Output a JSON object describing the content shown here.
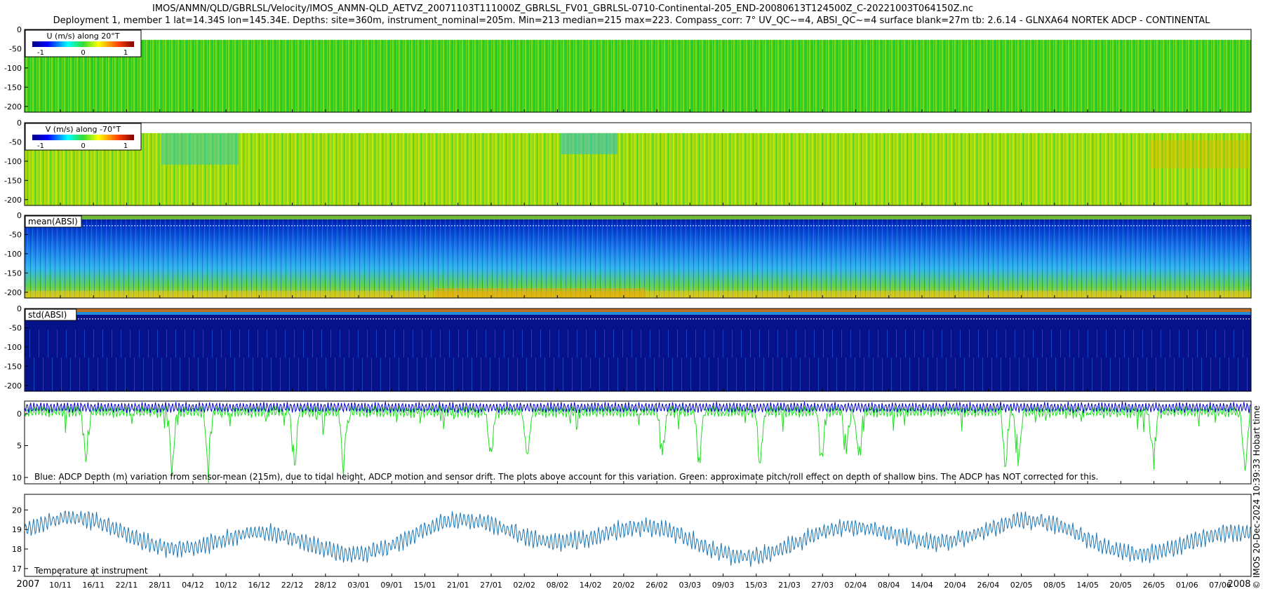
{
  "header": {
    "title": "IMOS/ANMN/QLD/GBRLSL/Velocity/IMOS_ANMN-QLD_AETVZ_20071103T111000Z_GBRLSL_FV01_GBRLSL-0710-Continental-205_END-20080613T124500Z_C-20221003T064150Z.nc",
    "subtitle": "Deployment 1, member 1 lat=14.34S lon=145.34E. Depths: site=360m, instrument_nominal=205m. Min=213 median=215 max=223. Compass_corr: 7° UV_QC~=4, ABSI_QC~=4 surface blank=27m tb: 2.6.14 - GLNXA64 NORTEK ADCP - CONTINENTAL"
  },
  "side_label": "© IMOS 20-Dec-2024 10:39:33 Hobart time",
  "colors": {
    "background": "#ffffff",
    "depth_line": "#0000cc",
    "pitch_roll_line": "#22dd22",
    "temperature_line": "#1f77b4"
  },
  "chart_data": [
    {
      "type": "heatmap",
      "label": "U (m/s) along 20°T",
      "colorbar_ticks": [
        "-1",
        "0",
        "1"
      ],
      "colormap": "jet",
      "yticks": [
        "0",
        "-50",
        "-100",
        "-150",
        "-200"
      ],
      "ylim": [
        -215,
        0
      ],
      "surface_blank_m": 27,
      "dominant_value": 0.05
    },
    {
      "type": "heatmap",
      "label": "V (m/s) along -70°T",
      "colorbar_ticks": [
        "-1",
        "0",
        "1"
      ],
      "colormap": "jet",
      "yticks": [
        "0",
        "-50",
        "-100",
        "-150",
        "-200"
      ],
      "ylim": [
        -215,
        0
      ],
      "surface_blank_m": 27,
      "dominant_value": 0.2
    },
    {
      "type": "heatmap",
      "label": "mean(ABSI)",
      "colormap": "jet",
      "yticks": [
        "0",
        "-50",
        "-100",
        "-150",
        "-200"
      ],
      "ylim": [
        -215,
        0
      ]
    },
    {
      "type": "heatmap",
      "label": "std(ABSI)",
      "colormap": "jet",
      "yticks": [
        "0",
        "-50",
        "-100",
        "-150",
        "-200"
      ],
      "ylim": [
        -215,
        0
      ]
    },
    {
      "type": "line",
      "caption": "Blue: ADCP Depth (m) variation from sensor-mean (215m), due to tidal height, ADCP motion and sensor drift. The plots above account for this variation. Green: approximate pitch/roll effect on depth of shallow bins. The ADCP has NOT corrected for this.",
      "yticks": [
        "0",
        "5",
        "10"
      ],
      "ylim": [
        11,
        -2
      ],
      "series": [
        {
          "key": "depth_variation",
          "color": "#0000cc",
          "baseline": -1.0,
          "amplitude": 0.9
        },
        {
          "key": "pitch_roll",
          "color": "#22dd22",
          "spikes_x": [
            0.05,
            0.12,
            0.15,
            0.22,
            0.26,
            0.38,
            0.41,
            0.52,
            0.55,
            0.6,
            0.65,
            0.67,
            0.68,
            0.8,
            0.81,
            0.92,
            0.995
          ]
        }
      ]
    },
    {
      "type": "line",
      "label": "Temperature at instrument",
      "yticks": [
        "17",
        "18",
        "19",
        "20"
      ],
      "ylim": [
        16.6,
        20.8
      ],
      "series": [
        {
          "key": "temperature",
          "color": "#1f77b4",
          "mean": 18.6
        }
      ]
    }
  ],
  "x_axis": {
    "tick_labels": [
      "10/11",
      "16/11",
      "22/11",
      "28/11",
      "04/12",
      "10/12",
      "16/12",
      "22/12",
      "28/12",
      "03/01",
      "09/01",
      "15/01",
      "21/01",
      "27/01",
      "02/02",
      "08/02",
      "14/02",
      "20/02",
      "26/02",
      "03/03",
      "09/03",
      "15/03",
      "21/03",
      "27/03",
      "02/04",
      "08/04",
      "14/04",
      "20/04",
      "26/04",
      "02/05",
      "08/05",
      "14/05",
      "20/05",
      "26/05",
      "01/06",
      "07/06"
    ],
    "year_start": "2007",
    "year_end": "2008"
  }
}
